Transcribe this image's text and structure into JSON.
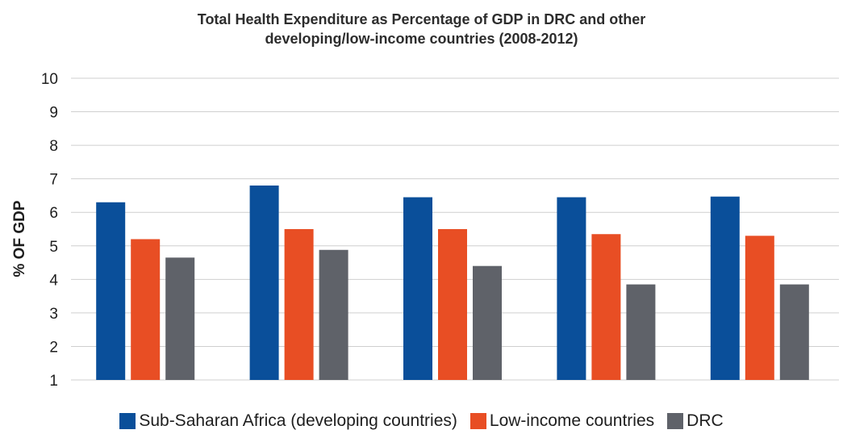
{
  "chart_data": {
    "type": "bar",
    "title_line1": "Total Health Expenditure as Percentage of GDP in DRC and other",
    "title_line2": "developing/low-income countries (2008-2012)",
    "xlabel": "",
    "ylabel": "% OF GDP",
    "ylim": [
      1,
      10
    ],
    "yticks": [
      "1",
      "2",
      "3",
      "4",
      "5",
      "6",
      "7",
      "8",
      "9",
      "10"
    ],
    "grid": true,
    "legend_position": "bottom",
    "categories": [
      "",
      "",
      "",
      "",
      ""
    ],
    "series": [
      {
        "name": "Sub-Saharan Africa (developing countries)",
        "color": "#0a4f9a",
        "values": [
          6.3,
          6.8,
          6.45,
          6.45,
          6.47
        ]
      },
      {
        "name": "Low-income countries",
        "color": "#e84e24",
        "values": [
          5.2,
          5.5,
          5.5,
          5.35,
          5.3
        ]
      },
      {
        "name": "DRC",
        "color": "#5f6269",
        "values": [
          4.65,
          4.88,
          4.4,
          3.85,
          3.85
        ]
      }
    ]
  }
}
